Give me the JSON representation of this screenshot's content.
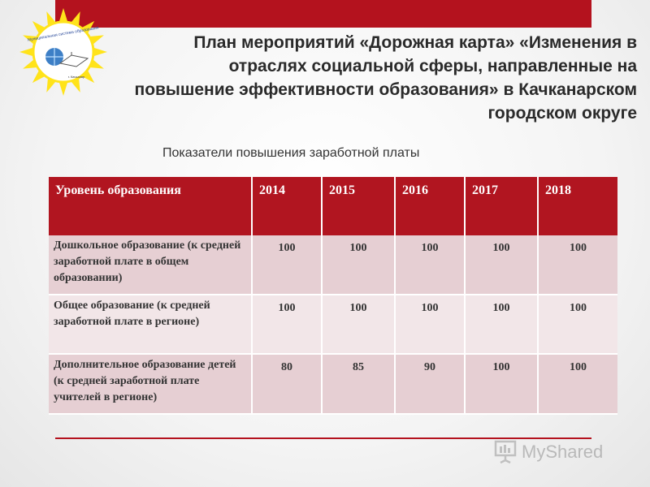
{
  "logo": {
    "text": "Муниципальная система образования г. Качканар"
  },
  "header": {
    "title": "План мероприятий «Дорожная карта» «Изменения в отраслях социальной сферы, направленные на повышение эффективности образования» в Качканарском городском округе",
    "subtitle": "Показатели повышения заработной платы"
  },
  "table": {
    "columns": [
      "Уровень образования",
      "2014",
      "2015",
      "2016",
      "2017",
      "2018"
    ],
    "rows": [
      {
        "label": "Дошкольное образование (к средней заработной плате в общем образовании)",
        "values": [
          "100",
          "100",
          "100",
          "100",
          "100"
        ]
      },
      {
        "label": "Общее образование (к средней заработной плате в регионе)",
        "values": [
          "100",
          "100",
          "100",
          "100",
          "100"
        ]
      },
      {
        "label": "Дополнительное образование детей (к средней заработной плате учителей в регионе)",
        "values": [
          "80",
          "85",
          "90",
          "100",
          "100"
        ]
      }
    ]
  },
  "watermark": {
    "text": "MyShared"
  },
  "colors": {
    "accent": "#b4121e",
    "header_bg": "#b11520",
    "row_dark": "#e6cfd3",
    "row_light": "#f2e6e8",
    "sun": "#ffe31a"
  }
}
